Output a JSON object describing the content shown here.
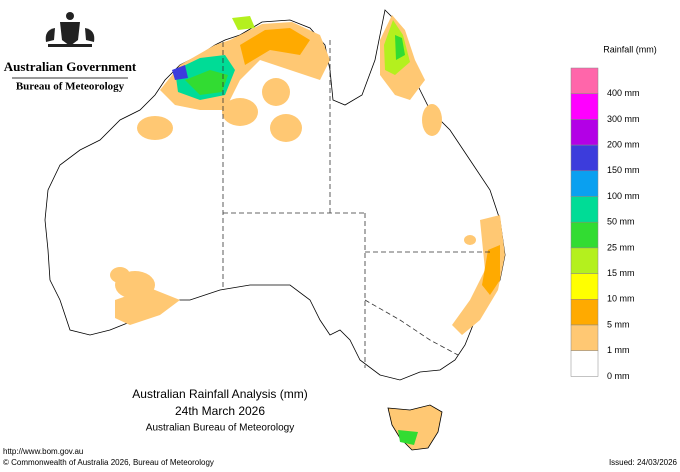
{
  "header": {
    "government": "Australian Government",
    "bureau": "Bureau of Meteorology"
  },
  "legend": {
    "title": "Rainfall (mm)",
    "boxes": [
      {
        "color": "#ff66aa"
      },
      {
        "color": "#ff00ff",
        "label": "400 mm"
      },
      {
        "color": "#b300e6",
        "label": "300 mm"
      },
      {
        "color": "#3c3cdc",
        "label": "200 mm"
      },
      {
        "color": "#0aa0f0",
        "label": "150 mm"
      },
      {
        "color": "#00dc96",
        "label": "100 mm"
      },
      {
        "color": "#32dc32",
        "label": "50 mm"
      },
      {
        "color": "#b4f01e",
        "label": "25 mm"
      },
      {
        "color": "#ffff00",
        "label": "15 mm"
      },
      {
        "color": "#ffaa00",
        "label": "10 mm"
      },
      {
        "color": "#ffc873",
        "label": "5 mm"
      },
      {
        "color": "#ffffff",
        "label": "1 mm"
      }
    ],
    "bottom_label": "0 mm"
  },
  "title": {
    "line1": "Australian Rainfall Analysis (mm)",
    "line2": "24th March 2026",
    "line3": "Australian Bureau of Meteorology"
  },
  "footer": {
    "url": "http://www.bom.gov.au",
    "copyright": "© Commonwealth of Australia 2026, Bureau of Meteorology",
    "issued": "Issued: 24/03/2026"
  }
}
